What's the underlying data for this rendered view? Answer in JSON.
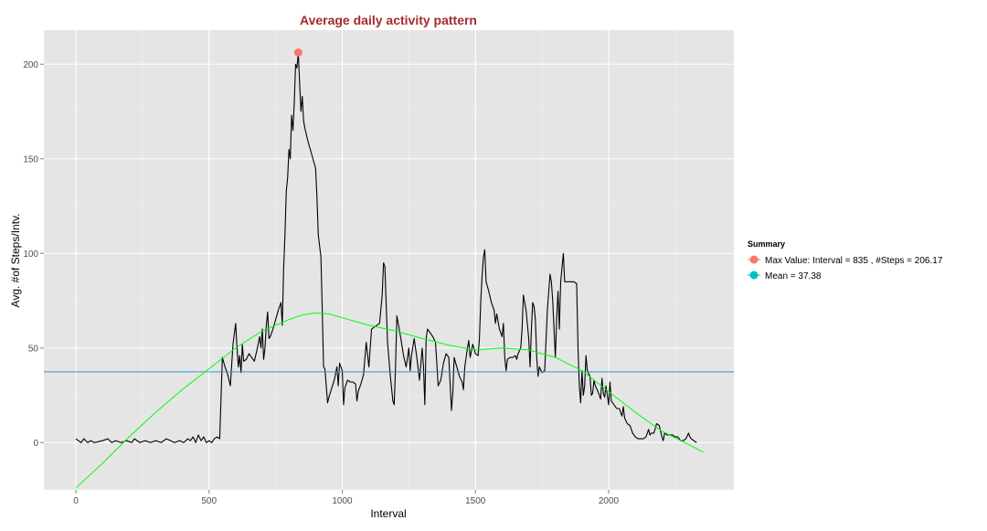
{
  "chart_data": {
    "type": "line",
    "title": "Average daily activity pattern",
    "xlabel": "Interval",
    "ylabel": "Avg. #of Steps/Intv.",
    "xlim": [
      -120,
      2470
    ],
    "ylim": [
      -25,
      218
    ],
    "x_ticks": [
      0,
      500,
      1000,
      1500,
      2000
    ],
    "y_ticks": [
      0,
      50,
      100,
      150,
      200
    ],
    "x_minor": [
      250,
      750,
      1250,
      1750,
      2250
    ],
    "y_minor": [
      -25,
      25,
      75,
      125,
      175
    ],
    "grid": true,
    "colors": {
      "title": "#a52a2a",
      "panel": "#e5e5e5",
      "grid": "#ffffff",
      "line": "#000000",
      "max_point": "#f8766d",
      "mean_line": "#00bfc4",
      "mean_line_drawn": "#3399cc",
      "smooth": "#00ff00"
    },
    "legend": {
      "position": "right",
      "title": "Summary",
      "items": [
        {
          "label": "Max Value: Interval =  835 , #Steps =  206.17",
          "color": "#f8766d"
        },
        {
          "label": "Mean =  37.38",
          "color": "#00bfc4"
        }
      ]
    },
    "max_point": {
      "x": 835,
      "y": 206.17
    },
    "mean": 37.38,
    "series": [
      {
        "values": [
          [
            0,
            2
          ],
          [
            10,
            1
          ],
          [
            20,
            0
          ],
          [
            30,
            2
          ],
          [
            45,
            0
          ],
          [
            55,
            1
          ],
          [
            70,
            0
          ],
          [
            100,
            1
          ],
          [
            120,
            2
          ],
          [
            135,
            0
          ],
          [
            150,
            1
          ],
          [
            170,
            0
          ],
          [
            190,
            1
          ],
          [
            210,
            0
          ],
          [
            220,
            2
          ],
          [
            240,
            0
          ],
          [
            260,
            1
          ],
          [
            280,
            0
          ],
          [
            300,
            1
          ],
          [
            320,
            0
          ],
          [
            340,
            2
          ],
          [
            355,
            1
          ],
          [
            370,
            0
          ],
          [
            390,
            1
          ],
          [
            405,
            0
          ],
          [
            420,
            2
          ],
          [
            430,
            1
          ],
          [
            440,
            3
          ],
          [
            450,
            0
          ],
          [
            460,
            4
          ],
          [
            470,
            1
          ],
          [
            480,
            3
          ],
          [
            490,
            0
          ],
          [
            500,
            1
          ],
          [
            510,
            0
          ],
          [
            520,
            2
          ],
          [
            530,
            3
          ],
          [
            540,
            2
          ],
          [
            550,
            45
          ],
          [
            560,
            40
          ],
          [
            570,
            36
          ],
          [
            580,
            30
          ],
          [
            590,
            52
          ],
          [
            600,
            63
          ],
          [
            605,
            50
          ],
          [
            610,
            40
          ],
          [
            615,
            46
          ],
          [
            620,
            37
          ],
          [
            625,
            52
          ],
          [
            630,
            43
          ],
          [
            640,
            44
          ],
          [
            650,
            47
          ],
          [
            660,
            45
          ],
          [
            670,
            43
          ],
          [
            680,
            49
          ],
          [
            690,
            56
          ],
          [
            695,
            50
          ],
          [
            700,
            60
          ],
          [
            705,
            44
          ],
          [
            710,
            50
          ],
          [
            715,
            62
          ],
          [
            720,
            69
          ],
          [
            725,
            55
          ],
          [
            730,
            56
          ],
          [
            740,
            60
          ],
          [
            750,
            65
          ],
          [
            760,
            70
          ],
          [
            770,
            74
          ],
          [
            775,
            62
          ],
          [
            780,
            92
          ],
          [
            785,
            110
          ],
          [
            790,
            133
          ],
          [
            795,
            140
          ],
          [
            800,
            155
          ],
          [
            805,
            150
          ],
          [
            810,
            173
          ],
          [
            815,
            165
          ],
          [
            820,
            180
          ],
          [
            825,
            200
          ],
          [
            830,
            198
          ],
          [
            835,
            206.17
          ],
          [
            840,
            190
          ],
          [
            845,
            175
          ],
          [
            850,
            183
          ],
          [
            855,
            170
          ],
          [
            860,
            166
          ],
          [
            870,
            160
          ],
          [
            880,
            155
          ],
          [
            890,
            150
          ],
          [
            900,
            145
          ],
          [
            905,
            130
          ],
          [
            910,
            110
          ],
          [
            915,
            104
          ],
          [
            920,
            98
          ],
          [
            925,
            70
          ],
          [
            930,
            40
          ],
          [
            935,
            39
          ],
          [
            940,
            30
          ],
          [
            945,
            21
          ],
          [
            950,
            24
          ],
          [
            970,
            33
          ],
          [
            980,
            40
          ],
          [
            985,
            30
          ],
          [
            990,
            42
          ],
          [
            1000,
            38
          ],
          [
            1005,
            20
          ],
          [
            1010,
            29
          ],
          [
            1020,
            33
          ],
          [
            1030,
            32
          ],
          [
            1040,
            32
          ],
          [
            1050,
            31
          ],
          [
            1055,
            22
          ],
          [
            1060,
            27
          ],
          [
            1070,
            31
          ],
          [
            1080,
            36
          ],
          [
            1090,
            53
          ],
          [
            1100,
            40
          ],
          [
            1110,
            60
          ],
          [
            1120,
            61
          ],
          [
            1130,
            62
          ],
          [
            1140,
            63
          ],
          [
            1150,
            78
          ],
          [
            1155,
            95
          ],
          [
            1160,
            93
          ],
          [
            1170,
            53
          ],
          [
            1180,
            36
          ],
          [
            1190,
            22
          ],
          [
            1195,
            20
          ],
          [
            1200,
            40
          ],
          [
            1205,
            67
          ],
          [
            1210,
            63
          ],
          [
            1220,
            55
          ],
          [
            1230,
            46
          ],
          [
            1240,
            40
          ],
          [
            1250,
            50
          ],
          [
            1255,
            38
          ],
          [
            1260,
            46
          ],
          [
            1270,
            55
          ],
          [
            1280,
            45
          ],
          [
            1290,
            33
          ],
          [
            1300,
            50
          ],
          [
            1305,
            40
          ],
          [
            1310,
            20
          ],
          [
            1315,
            55
          ],
          [
            1320,
            60
          ],
          [
            1330,
            58
          ],
          [
            1340,
            56
          ],
          [
            1350,
            53
          ],
          [
            1355,
            42
          ],
          [
            1360,
            30
          ],
          [
            1370,
            33
          ],
          [
            1380,
            42
          ],
          [
            1390,
            47
          ],
          [
            1400,
            45
          ],
          [
            1405,
            31
          ],
          [
            1410,
            17
          ],
          [
            1415,
            26
          ],
          [
            1420,
            45
          ],
          [
            1430,
            40
          ],
          [
            1440,
            35
          ],
          [
            1450,
            32
          ],
          [
            1455,
            28
          ],
          [
            1460,
            40
          ],
          [
            1470,
            50
          ],
          [
            1475,
            54
          ],
          [
            1480,
            45
          ],
          [
            1490,
            52
          ],
          [
            1500,
            47
          ],
          [
            1510,
            46
          ],
          [
            1515,
            55
          ],
          [
            1520,
            75
          ],
          [
            1525,
            88
          ],
          [
            1530,
            98
          ],
          [
            1535,
            102
          ],
          [
            1540,
            85
          ],
          [
            1550,
            80
          ],
          [
            1560,
            74
          ],
          [
            1570,
            70
          ],
          [
            1575,
            63
          ],
          [
            1580,
            68
          ],
          [
            1590,
            60
          ],
          [
            1600,
            56
          ],
          [
            1605,
            63
          ],
          [
            1610,
            45
          ],
          [
            1615,
            38
          ],
          [
            1620,
            44
          ],
          [
            1630,
            45
          ],
          [
            1640,
            45
          ],
          [
            1650,
            46
          ],
          [
            1655,
            44
          ],
          [
            1660,
            47
          ],
          [
            1670,
            50
          ],
          [
            1675,
            60
          ],
          [
            1680,
            78
          ],
          [
            1690,
            70
          ],
          [
            1700,
            55
          ],
          [
            1705,
            40
          ],
          [
            1710,
            60
          ],
          [
            1715,
            74
          ],
          [
            1720,
            72
          ],
          [
            1725,
            65
          ],
          [
            1730,
            45
          ],
          [
            1735,
            35
          ],
          [
            1740,
            40
          ],
          [
            1750,
            37
          ],
          [
            1760,
            38
          ],
          [
            1770,
            70
          ],
          [
            1780,
            89
          ],
          [
            1785,
            85
          ],
          [
            1790,
            75
          ],
          [
            1800,
            45
          ],
          [
            1805,
            66
          ],
          [
            1810,
            80
          ],
          [
            1815,
            60
          ],
          [
            1820,
            85
          ],
          [
            1830,
            100
          ],
          [
            1835,
            85
          ],
          [
            1840,
            85
          ],
          [
            1850,
            85
          ],
          [
            1860,
            85
          ],
          [
            1870,
            85
          ],
          [
            1880,
            84
          ],
          [
            1885,
            50
          ],
          [
            1890,
            30
          ],
          [
            1895,
            21
          ],
          [
            1900,
            38
          ],
          [
            1905,
            25
          ],
          [
            1910,
            30
          ],
          [
            1915,
            46
          ],
          [
            1920,
            38
          ],
          [
            1930,
            35
          ],
          [
            1935,
            25
          ],
          [
            1940,
            26
          ],
          [
            1945,
            33
          ],
          [
            1950,
            30
          ],
          [
            1960,
            27
          ],
          [
            1970,
            23
          ],
          [
            1975,
            34
          ],
          [
            1980,
            26
          ],
          [
            1985,
            24
          ],
          [
            1990,
            30
          ],
          [
            2000,
            20
          ],
          [
            2005,
            32
          ],
          [
            2010,
            22
          ],
          [
            2020,
            20
          ],
          [
            2030,
            18
          ],
          [
            2040,
            18
          ],
          [
            2050,
            14
          ],
          [
            2055,
            19
          ],
          [
            2060,
            13
          ],
          [
            2070,
            10
          ],
          [
            2080,
            9
          ],
          [
            2090,
            5
          ],
          [
            2100,
            3
          ],
          [
            2110,
            2
          ],
          [
            2120,
            2
          ],
          [
            2130,
            2
          ],
          [
            2140,
            3
          ],
          [
            2150,
            7
          ],
          [
            2155,
            4
          ],
          [
            2160,
            5
          ],
          [
            2170,
            5
          ],
          [
            2180,
            10
          ],
          [
            2190,
            9
          ],
          [
            2200,
            3
          ],
          [
            2205,
            1
          ],
          [
            2210,
            5
          ],
          [
            2220,
            4
          ],
          [
            2230,
            4
          ],
          [
            2240,
            4
          ],
          [
            2250,
            3
          ],
          [
            2260,
            3
          ],
          [
            2270,
            1
          ],
          [
            2280,
            1
          ],
          [
            2290,
            2
          ],
          [
            2300,
            5
          ],
          [
            2305,
            3
          ],
          [
            2310,
            2
          ],
          [
            2320,
            1
          ],
          [
            2330,
            0
          ]
        ]
      },
      {
        "values": [
          [
            0,
            -24
          ],
          [
            100,
            -11
          ],
          [
            200,
            3
          ],
          [
            300,
            16
          ],
          [
            400,
            28
          ],
          [
            500,
            39
          ],
          [
            600,
            50
          ],
          [
            700,
            59
          ],
          [
            800,
            65
          ],
          [
            850,
            67.5
          ],
          [
            900,
            68.5
          ],
          [
            950,
            68
          ],
          [
            1000,
            66
          ],
          [
            1100,
            62
          ],
          [
            1200,
            59
          ],
          [
            1300,
            55
          ],
          [
            1400,
            51.5
          ],
          [
            1500,
            49
          ],
          [
            1600,
            50
          ],
          [
            1700,
            49
          ],
          [
            1800,
            45
          ],
          [
            1900,
            38
          ],
          [
            2000,
            27
          ],
          [
            2100,
            16
          ],
          [
            2200,
            6
          ],
          [
            2300,
            -1
          ],
          [
            2355,
            -5
          ]
        ]
      }
    ]
  }
}
